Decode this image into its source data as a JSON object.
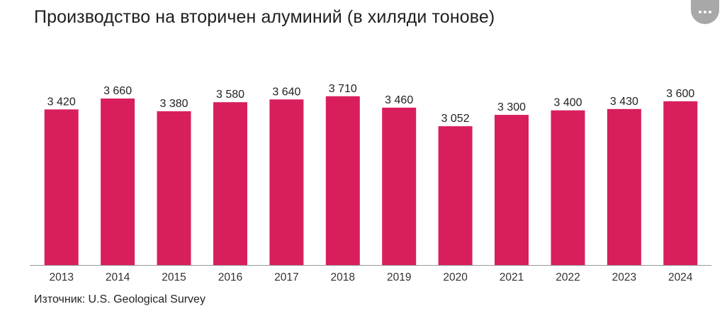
{
  "header": {
    "title": "Производство на вторичен алуминий (в хиляди тонове)",
    "more_icon": "more-horizontal-icon"
  },
  "footer": {
    "source": "Източник: U.S. Geological Survey"
  },
  "colors": {
    "bar": "#d81f5c",
    "axis": "#9a9a9a"
  },
  "chart_data": {
    "type": "bar",
    "title": "Производство на вторичен алуминий (в хиляди тонове)",
    "xlabel": "",
    "ylabel": "",
    "categories": [
      "2013",
      "2014",
      "2015",
      "2016",
      "2017",
      "2018",
      "2019",
      "2020",
      "2021",
      "2022",
      "2023",
      "2024"
    ],
    "values": [
      3420,
      3660,
      3380,
      3580,
      3640,
      3710,
      3460,
      3052,
      3300,
      3400,
      3430,
      3600
    ],
    "value_labels": [
      "3 420",
      "3 660",
      "3 380",
      "3 580",
      "3 640",
      "3 710",
      "3 460",
      "3 052",
      "3 300",
      "3 400",
      "3 430",
      "3 600"
    ],
    "ylim": [
      0,
      4190
    ],
    "grid": false,
    "legend": "none"
  }
}
